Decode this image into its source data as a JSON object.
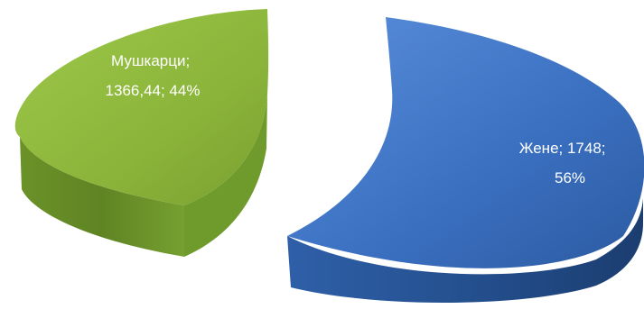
{
  "chart_data": {
    "type": "pie",
    "title": "",
    "style": "3d exploded pie",
    "legend": "none",
    "slices": [
      {
        "name": "Жене",
        "value": 1748,
        "percent": 56,
        "label_line1": "Жене; 1748;",
        "label_line2": "56%",
        "color": "#3a6fc0",
        "side_color": "#244d8c"
      },
      {
        "name": "Мушкарци",
        "value": 1366.44,
        "percent": 44,
        "label_line1": "Мушкарци;",
        "label_line2": "1366,44; 44%",
        "color": "#8bb53a",
        "side_color": "#5f8424"
      }
    ]
  }
}
